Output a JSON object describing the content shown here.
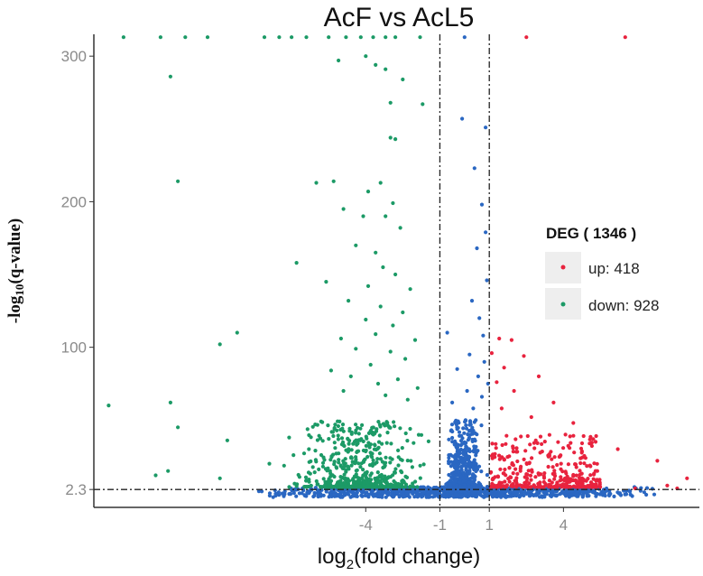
{
  "chart_data": {
    "type": "scatter",
    "title": "AcF  vs  AcL5",
    "xlabel_prefix": "log",
    "xlabel_sub": "2",
    "xlabel_suffix": "(fold change)",
    "ylabel_prefix": "-log",
    "ylabel_sub": "10",
    "ylabel_suffix": "(q-value)",
    "x_ticks": [
      "-4",
      "-1",
      "1",
      "4"
    ],
    "x_tick_values": [
      -4,
      -1,
      1,
      4
    ],
    "y_ticks": [
      "2.3",
      "100",
      "200",
      "300"
    ],
    "y_tick_values": [
      2.3,
      100,
      200,
      300
    ],
    "xlim": [
      -15,
      9.5
    ],
    "ylim": [
      -10,
      315
    ],
    "fc_thresholds": [
      -1,
      1
    ],
    "q_threshold": 2.3,
    "legend": {
      "title": "DEG ( 1346 )",
      "entries": [
        {
          "label": "up: 418",
          "color": "#e8233e"
        },
        {
          "label": "down: 928",
          "color": "#1c9a66"
        }
      ],
      "position": "right"
    },
    "colors": {
      "up": "#e8233e",
      "down": "#1c9a66",
      "nosig": "#2a67c2"
    },
    "series": [
      {
        "name": "down",
        "color": "#1c9a66",
        "points": [
          [
            -13.8,
            313
          ],
          [
            -12.3,
            313
          ],
          [
            -11.3,
            313
          ],
          [
            -10.4,
            313
          ],
          [
            -8.1,
            313
          ],
          [
            -7.5,
            313
          ],
          [
            -7.0,
            313
          ],
          [
            -6.4,
            313
          ],
          [
            -5.5,
            313
          ],
          [
            -4.8,
            313
          ],
          [
            -4.2,
            313
          ],
          [
            -3.7,
            313
          ],
          [
            -3.2,
            313
          ],
          [
            -2.8,
            313
          ],
          [
            -1.8,
            313
          ],
          [
            -4.0,
            300
          ],
          [
            -5.1,
            297
          ],
          [
            -3.6,
            294
          ],
          [
            -3.2,
            291
          ],
          [
            -2.5,
            284
          ],
          [
            -3.0,
            268
          ],
          [
            -1.7,
            267
          ],
          [
            -3.0,
            244
          ],
          [
            -2.8,
            243
          ],
          [
            -11.9,
            286
          ],
          [
            -11.6,
            214
          ],
          [
            -6.0,
            213
          ],
          [
            -5.3,
            214
          ],
          [
            -3.4,
            213
          ],
          [
            -3.9,
            207
          ],
          [
            -2.9,
            199
          ],
          [
            -4.9,
            195
          ],
          [
            -4.1,
            190
          ],
          [
            -3.2,
            190
          ],
          [
            -2.6,
            182
          ],
          [
            -4.4,
            170
          ],
          [
            -3.6,
            165
          ],
          [
            -6.8,
            158
          ],
          [
            -3.3,
            155
          ],
          [
            -2.8,
            150
          ],
          [
            -5.6,
            145
          ],
          [
            -3.9,
            142
          ],
          [
            -2.2,
            140
          ],
          [
            -4.7,
            132
          ],
          [
            -3.4,
            128
          ],
          [
            -2.5,
            124
          ],
          [
            -4.0,
            119
          ],
          [
            -2.9,
            115
          ],
          [
            -3.6,
            109
          ],
          [
            -5.0,
            106
          ],
          [
            -9.2,
            110
          ],
          [
            -9.9,
            102
          ],
          [
            -2.0,
            105
          ],
          [
            -4.4,
            99
          ],
          [
            -3.0,
            97
          ],
          [
            -2.4,
            92
          ],
          [
            -3.8,
            88
          ],
          [
            -5.4,
            84
          ],
          [
            -4.6,
            80
          ],
          [
            -2.7,
            78
          ],
          [
            -3.5,
            75
          ],
          [
            -1.9,
            72
          ],
          [
            -4.9,
            70
          ],
          [
            -3.2,
            67
          ],
          [
            -2.3,
            64
          ],
          [
            -14.4,
            60
          ],
          [
            -11.9,
            62
          ],
          [
            -11.6,
            45
          ],
          [
            -9.6,
            36
          ],
          [
            -7.1,
            38
          ],
          [
            -6.3,
            30
          ],
          [
            -5.8,
            26
          ],
          [
            -7.9,
            20
          ],
          [
            -9.9,
            10
          ],
          [
            -12.0,
            15
          ],
          [
            -12.5,
            12
          ]
        ],
        "cluster": {
          "x_range": [
            -7.5,
            -1.05
          ],
          "y_range": [
            4,
            50
          ],
          "count": 560
        }
      },
      {
        "name": "nosig",
        "color": "#2a67c2",
        "points": [
          [
            0.0,
            313
          ],
          [
            -0.1,
            257
          ],
          [
            0.85,
            251
          ],
          [
            0.4,
            223
          ],
          [
            0.7,
            198
          ],
          [
            0.85,
            179
          ],
          [
            0.5,
            168
          ],
          [
            0.9,
            146
          ],
          [
            0.3,
            132
          ],
          [
            0.6,
            120
          ],
          [
            0.75,
            108
          ],
          [
            -0.7,
            110
          ],
          [
            0.2,
            95
          ],
          [
            0.8,
            90
          ],
          [
            -0.3,
            85
          ],
          [
            0.55,
            80
          ],
          [
            0.95,
            75
          ],
          [
            0.1,
            70
          ],
          [
            0.7,
            66
          ],
          [
            -0.5,
            62
          ],
          [
            0.35,
            58
          ]
        ],
        "cluster": {
          "x_range": [
            -0.95,
            0.95
          ],
          "y_range": [
            4,
            50
          ],
          "count": 450
        },
        "baseline": {
          "x_range": [
            -8.5,
            7.8
          ],
          "y_range": [
            -3,
            4
          ],
          "count": 900
        }
      },
      {
        "name": "up",
        "color": "#e8233e",
        "points": [
          [
            2.5,
            313
          ],
          [
            6.5,
            313
          ],
          [
            1.4,
            106
          ],
          [
            1.9,
            105
          ],
          [
            1.1,
            96
          ],
          [
            2.4,
            94
          ],
          [
            1.6,
            86
          ],
          [
            3.0,
            80
          ],
          [
            1.3,
            76
          ],
          [
            2.0,
            70
          ],
          [
            3.6,
            62
          ],
          [
            1.5,
            58
          ],
          [
            2.7,
            52
          ],
          [
            4.4,
            48
          ],
          [
            5.3,
            35
          ],
          [
            6.2,
            30
          ],
          [
            7.8,
            22
          ],
          [
            9.0,
            10
          ],
          [
            8.2,
            5
          ],
          [
            6.9,
            3
          ],
          [
            8.6,
            3
          ]
        ],
        "cluster": {
          "x_range": [
            1.05,
            5.5
          ],
          "y_range": [
            4,
            40
          ],
          "count": 330
        }
      }
    ]
  }
}
